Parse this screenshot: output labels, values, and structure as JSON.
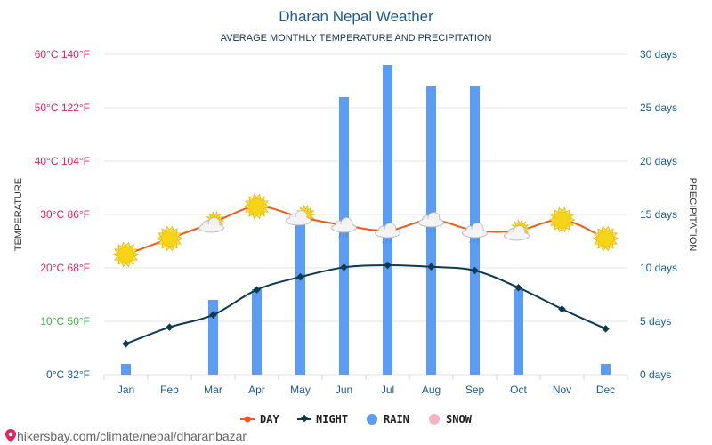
{
  "chart_data": {
    "type": "bar+line",
    "title": "Dharan Nepal Weather",
    "subtitle": "AVERAGE MONTHLY TEMPERATURE AND PRECIPITATION",
    "categories": [
      "Jan",
      "Feb",
      "Mar",
      "Apr",
      "May",
      "Jun",
      "Jul",
      "Aug",
      "Sep",
      "Oct",
      "Nov",
      "Dec"
    ],
    "y_left": {
      "label": "TEMPERATURE",
      "range_c": [
        0,
        60
      ],
      "ticks": [
        {
          "c": 60,
          "text": "60°C 140°F",
          "color": "#e0245e"
        },
        {
          "c": 50,
          "text": "50°C 122°F",
          "color": "#e0245e"
        },
        {
          "c": 40,
          "text": "40°C 104°F",
          "color": "#e0245e"
        },
        {
          "c": 30,
          "text": "30°C 86°F",
          "color": "#e0245e"
        },
        {
          "c": 20,
          "text": "20°C 68°F",
          "color": "#e0245e"
        },
        {
          "c": 10,
          "text": "10°C 50°F",
          "color": "#3cb043"
        },
        {
          "c": 0,
          "text": "0°C 32°F",
          "color": "#1a5a94"
        }
      ]
    },
    "y_right": {
      "label": "PRECIPITATION",
      "range_days": [
        0,
        30
      ],
      "ticks": [
        {
          "v": 30,
          "text": "30 days"
        },
        {
          "v": 25,
          "text": "25 days"
        },
        {
          "v": 20,
          "text": "20 days"
        },
        {
          "v": 15,
          "text": "15 days"
        },
        {
          "v": 10,
          "text": "10 days"
        },
        {
          "v": 5,
          "text": "5 days"
        },
        {
          "v": 0,
          "text": "0 days"
        }
      ]
    },
    "series": [
      {
        "name": "DAY",
        "kind": "line",
        "color": "#f05a1a",
        "values": [
          22.5,
          25.5,
          28.5,
          31.5,
          29.5,
          28,
          27,
          29,
          27,
          27,
          29,
          25.5
        ]
      },
      {
        "name": "NIGHT",
        "kind": "line",
        "color": "#0e3a4f",
        "values": [
          5.8,
          8.9,
          11.2,
          15.9,
          18.3,
          20.1,
          20.5,
          20.2,
          19.5,
          16.3,
          12.3,
          8.6
        ]
      },
      {
        "name": "RAIN",
        "kind": "bar",
        "color": "#5b9cf5",
        "values": [
          1,
          0,
          7,
          8,
          15,
          26,
          29,
          27,
          27,
          8,
          0,
          1
        ]
      },
      {
        "name": "SNOW",
        "kind": "bar",
        "color": "#f7b3c6",
        "values": [
          0,
          0,
          0,
          0,
          0,
          0,
          0,
          0,
          0,
          0,
          0,
          0
        ]
      }
    ],
    "weather_icons": [
      "sun",
      "sun",
      "sun-cloud",
      "sun",
      "cloud-sun",
      "cloud-rain",
      "cloud-rain",
      "cloud-rain",
      "cloud-rain",
      "sun-cloud",
      "sun",
      "sun"
    ],
    "grid": true,
    "legend_position": "bottom-center"
  },
  "source_text": "hikersbay.com/climate/nepal/dharanbazar",
  "colors": {
    "title": "#1a5a94",
    "grid": "#e6e6e6",
    "day": "#f05a1a",
    "night": "#0e3a4f",
    "rain": "#5b9cf5",
    "snow": "#f7b3c6",
    "sun": "#f7d417"
  }
}
